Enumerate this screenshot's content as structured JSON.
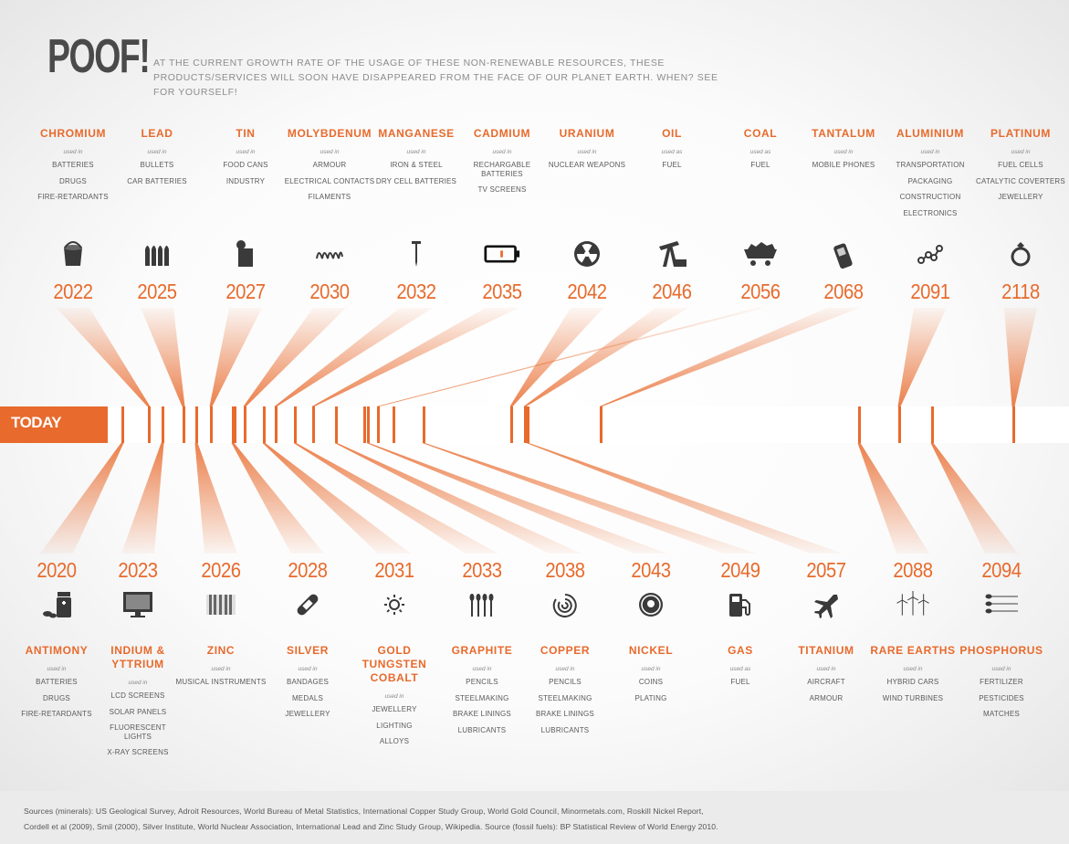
{
  "header": {
    "title": "POOF!",
    "subtitle": "At the current growth rate of the usage of these non-renewable resources, these products/services will soon have disappeared from the face of our planet earth. When? See for yourself!"
  },
  "timeline": {
    "today_label": "TODAY"
  },
  "colors": {
    "accent": "#e86a2c",
    "text": "#555555",
    "icon": "#3a3a3a"
  },
  "top_items": [
    {
      "name": "CHROMIUM",
      "used_label": "used in",
      "uses": [
        "BATTERIES",
        "DRUGS",
        "FIRE-RETARDANTS"
      ],
      "icon": "paint-bucket-icon",
      "year": "2022"
    },
    {
      "name": "LEAD",
      "used_label": "used in",
      "uses": [
        "BULLETS",
        "CAR BATTERIES"
      ],
      "icon": "bullets-icon",
      "year": "2025"
    },
    {
      "name": "TIN",
      "used_label": "used in",
      "uses": [
        "FOOD CANS",
        "INDUSTRY"
      ],
      "icon": "food-can-icon",
      "year": "2027"
    },
    {
      "name": "MOLYBDENUM",
      "used_label": "used in",
      "uses": [
        "ARMOUR",
        "ELECTRICAL CONTACTS",
        "FILAMENTS"
      ],
      "icon": "filament-icon",
      "year": "2030"
    },
    {
      "name": "MANGANESE",
      "used_label": "used in",
      "uses": [
        "IRON & STEEL",
        "DRY CELL BATTERIES"
      ],
      "icon": "nail-icon",
      "year": "2032"
    },
    {
      "name": "CADMIUM",
      "used_label": "used in",
      "uses": [
        "RECHARGABLE BATTERIES",
        "TV SCREENS"
      ],
      "icon": "battery-icon",
      "year": "2035"
    },
    {
      "name": "URANIUM",
      "used_label": "used in",
      "uses": [
        "NUCLEAR WEAPONS"
      ],
      "icon": "radiation-icon",
      "year": "2042"
    },
    {
      "name": "OIL",
      "used_label": "used as",
      "uses": [
        "FUEL"
      ],
      "icon": "oil-pump-icon",
      "year": "2046"
    },
    {
      "name": "COAL",
      "used_label": "used as",
      "uses": [
        "FUEL"
      ],
      "icon": "coal-cart-icon",
      "year": "2056"
    },
    {
      "name": "TANTALUM",
      "used_label": "used in",
      "uses": [
        "MOBILE PHONES"
      ],
      "icon": "mobile-phone-icon",
      "year": "2068"
    },
    {
      "name": "ALUMINIUM",
      "used_label": "used in",
      "uses": [
        "TRANSPORTATION",
        "PACKAGING",
        "CONSTRUCTION",
        "ELECTRONICS"
      ],
      "icon": "molecule-icon",
      "year": "2091"
    },
    {
      "name": "PLATINUM",
      "used_label": "used in",
      "uses": [
        "FUEL CELLS",
        "CATALYTIC COVERTERS",
        "JEWELLERY"
      ],
      "icon": "ring-icon",
      "year": "2118"
    }
  ],
  "bottom_items": [
    {
      "name": "ANTIMONY",
      "used_label": "used in",
      "uses": [
        "BATTERIES",
        "DRUGS",
        "FIRE-RETARDANTS"
      ],
      "icon": "pill-bottle-icon",
      "year": "2020"
    },
    {
      "name": "INDIUM & YTTRIUM",
      "used_label": "used in",
      "uses": [
        "LCD SCREENS",
        "SOLAR PANELS",
        "FLUORESCENT LIGHTS",
        "X-RAY SCREENS"
      ],
      "icon": "monitor-icon",
      "year": "2023"
    },
    {
      "name": "ZINC",
      "used_label": "used in",
      "uses": [
        "MUSICAL INSTRUMENTS"
      ],
      "icon": "piano-keys-icon",
      "year": "2026"
    },
    {
      "name": "SILVER",
      "used_label": "used in",
      "uses": [
        "BANDAGES",
        "MEDALS",
        "JEWELLERY"
      ],
      "icon": "bandage-icon",
      "year": "2028"
    },
    {
      "name": "GOLD TUNGSTEN COBALT",
      "used_label": "used in",
      "uses": [
        "JEWELLERY",
        "LIGHTING",
        "ALLOYS"
      ],
      "icon": "sun-icon",
      "year": "2031"
    },
    {
      "name": "GRAPHITE",
      "used_label": "used in",
      "uses": [
        "PENCILS",
        "STEELMAKING",
        "BRAKE LININGS",
        "LUBRICANTS"
      ],
      "icon": "cutlery-icon",
      "year": "2033"
    },
    {
      "name": "COPPER",
      "used_label": "used in",
      "uses": [
        "PENCILS",
        "STEELMAKING",
        "BRAKE LININGS",
        "LUBRICANTS"
      ],
      "icon": "wire-coil-icon",
      "year": "2038"
    },
    {
      "name": "NICKEL",
      "used_label": "used in",
      "uses": [
        "COINS",
        "PLATING"
      ],
      "icon": "coin-icon",
      "year": "2043"
    },
    {
      "name": "GAS",
      "used_label": "used as",
      "uses": [
        "FUEL"
      ],
      "icon": "gas-pump-icon",
      "year": "2049"
    },
    {
      "name": "TITANIUM",
      "used_label": "used in",
      "uses": [
        "AIRCRAFT",
        "ARMOUR"
      ],
      "icon": "airplane-icon",
      "year": "2057"
    },
    {
      "name": "RARE EARTHS",
      "used_label": "used in",
      "uses": [
        "HYBRID CARS",
        "WIND TURBINES"
      ],
      "icon": "wind-turbines-icon",
      "year": "2088"
    },
    {
      "name": "PHOSPHORUS",
      "used_label": "used in",
      "uses": [
        "FERTILIZER",
        "PESTICIDES",
        "MATCHES"
      ],
      "icon": "matches-icon",
      "year": "2094"
    }
  ],
  "footer": {
    "line1": "Sources (minerals): US Geological Survey, Adroit Resources, World Bureau of Metal Statistics, International Copper Study Group, World Gold Council, Minormetals.com, Roskill Nickel Report,",
    "line2": "Cordell et al (2009), Smil (2000), Silver Institute, World Nuclear Association, International Lead and Zinc Study Group, Wikipedia. Source (fossil fuels): BP Statistical Review of World Energy 2010."
  }
}
